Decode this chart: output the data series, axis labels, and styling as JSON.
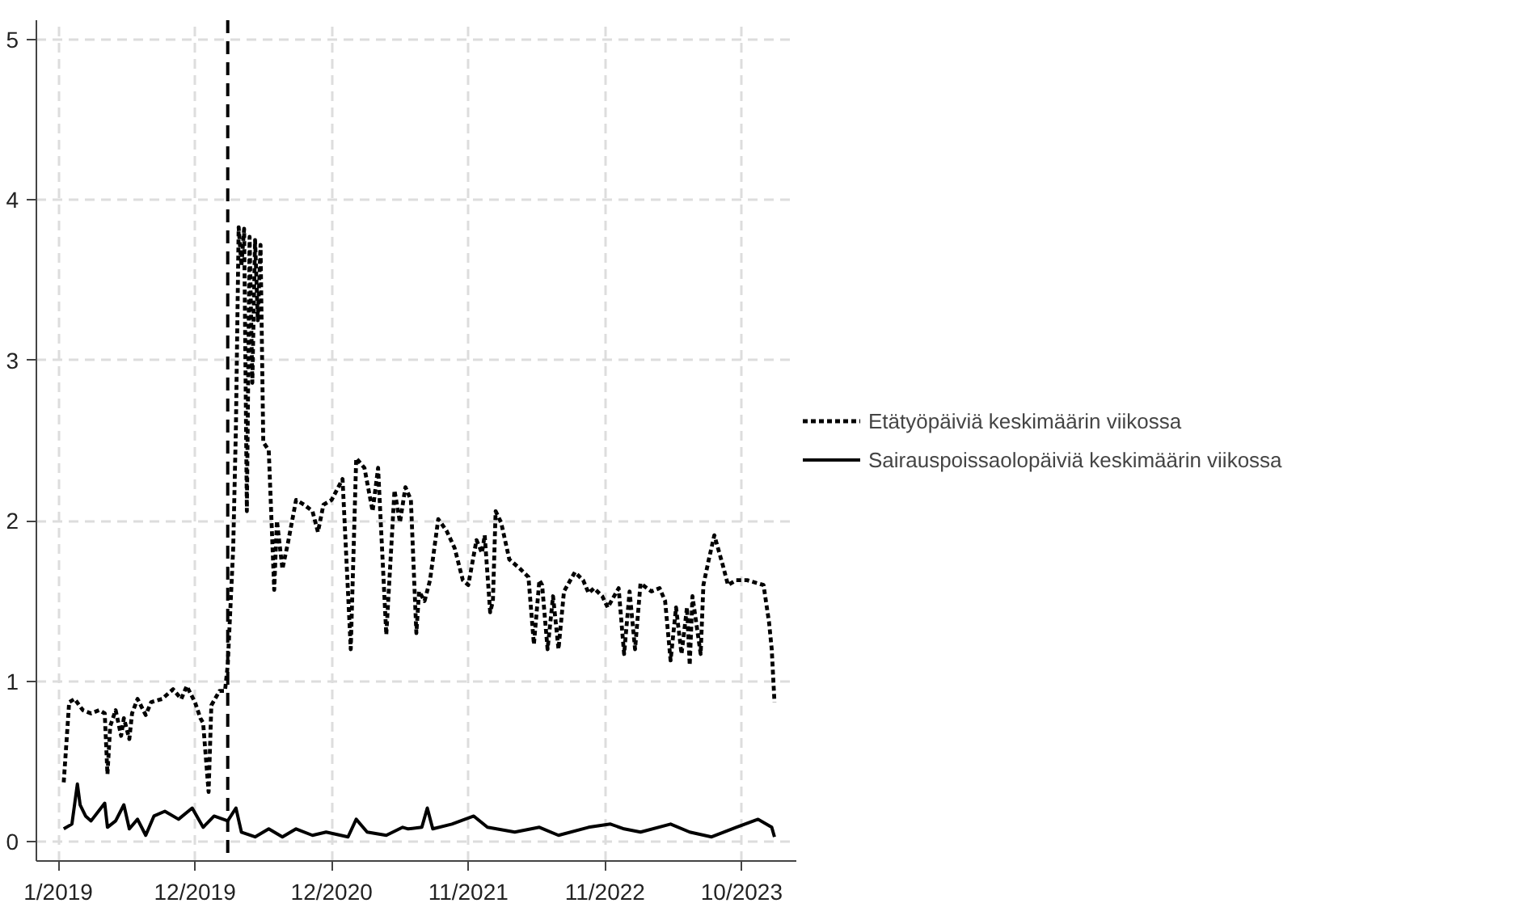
{
  "chart_data": {
    "type": "line",
    "xlim": [
      "2018-11-12",
      "2024-03-11"
    ],
    "ylim": [
      -0.12,
      5.12
    ],
    "xticks": [
      {
        "value": "2019-01-07",
        "label": "1/2019"
      },
      {
        "value": "2019-12-23",
        "label": "12/2019"
      },
      {
        "value": "2020-12-07",
        "label": "12/2020"
      },
      {
        "value": "2021-11-22",
        "label": "11/2021"
      },
      {
        "value": "2022-11-07",
        "label": "11/2022"
      },
      {
        "value": "2023-10-23",
        "label": "10/2023"
      }
    ],
    "yticks": [
      0,
      1,
      2,
      3,
      4,
      5
    ],
    "grid": true,
    "legend": "right",
    "marker": "none",
    "ref_lines": [
      {
        "axis": "x",
        "value": "2020-03-16",
        "color": "#000000",
        "line_style": "dashed"
      }
    ],
    "series": [
      {
        "name": "Etätyöpäiviä keskimäärin viikossa",
        "color": "#000000",
        "line_style": "dotted",
        "x": [
          "2019-01-21",
          "2019-02-04",
          "2019-02-18",
          "2019-03-11",
          "2019-04-01",
          "2019-04-22",
          "2019-05-06",
          "2019-05-13",
          "2019-05-20",
          "2019-06-03",
          "2019-06-17",
          "2019-06-24",
          "2019-07-08",
          "2019-07-15",
          "2019-07-29",
          "2019-08-19",
          "2019-09-02",
          "2019-09-30",
          "2019-10-28",
          "2019-11-18",
          "2019-12-02",
          "2019-12-23",
          "2020-01-06",
          "2020-01-13",
          "2020-01-27",
          "2020-02-03",
          "2020-02-24",
          "2020-03-09",
          "2020-03-16",
          "2020-03-30",
          "2020-04-06",
          "2020-04-13",
          "2020-04-20",
          "2020-04-27",
          "2020-05-04",
          "2020-05-11",
          "2020-05-18",
          "2020-05-25",
          "2020-06-01",
          "2020-06-08",
          "2020-06-15",
          "2020-06-29",
          "2020-07-13",
          "2020-07-20",
          "2020-08-03",
          "2020-08-17",
          "2020-09-07",
          "2020-09-28",
          "2020-10-19",
          "2020-11-02",
          "2020-11-16",
          "2020-12-07",
          "2021-01-04",
          "2021-01-25",
          "2021-02-08",
          "2021-03-01",
          "2021-03-22",
          "2021-04-05",
          "2021-04-26",
          "2021-05-17",
          "2021-05-31",
          "2021-06-14",
          "2021-06-28",
          "2021-07-12",
          "2021-07-19",
          "2021-08-02",
          "2021-08-16",
          "2021-09-06",
          "2021-09-27",
          "2021-10-18",
          "2021-11-08",
          "2021-11-22",
          "2021-12-13",
          "2021-12-27",
          "2022-01-03",
          "2022-01-17",
          "2022-01-24",
          "2022-01-31",
          "2022-02-14",
          "2022-03-07",
          "2022-04-04",
          "2022-04-25",
          "2022-05-09",
          "2022-05-23",
          "2022-05-30",
          "2022-06-13",
          "2022-06-27",
          "2022-07-11",
          "2022-07-25",
          "2022-08-22",
          "2022-09-12",
          "2022-09-26",
          "2022-10-10",
          "2022-10-31",
          "2022-11-14",
          "2022-12-12",
          "2022-12-26",
          "2023-01-09",
          "2023-01-23",
          "2023-02-06",
          "2023-03-06",
          "2023-03-27",
          "2023-04-10",
          "2023-04-24",
          "2023-05-08",
          "2023-05-22",
          "2023-06-05",
          "2023-06-12",
          "2023-06-19",
          "2023-07-10",
          "2023-07-17",
          "2023-07-31",
          "2023-08-14",
          "2023-09-04",
          "2023-09-18",
          "2023-10-09",
          "2023-11-06",
          "2023-12-04",
          "2023-12-18",
          "2024-01-01",
          "2024-01-08",
          "2024-01-15"
        ],
        "values": [
          0.37,
          0.87,
          0.89,
          0.82,
          0.8,
          0.82,
          0.8,
          0.42,
          0.72,
          0.82,
          0.66,
          0.77,
          0.64,
          0.8,
          0.89,
          0.79,
          0.87,
          0.89,
          0.95,
          0.89,
          0.97,
          0.87,
          0.77,
          0.74,
          0.31,
          0.85,
          0.94,
          0.94,
          1.1,
          1.83,
          2.59,
          3.83,
          3.59,
          3.82,
          2.06,
          3.77,
          2.86,
          3.75,
          3.25,
          3.72,
          2.49,
          2.44,
          1.57,
          2.0,
          1.7,
          1.86,
          2.13,
          2.1,
          2.06,
          1.93,
          2.1,
          2.13,
          2.26,
          1.2,
          2.39,
          2.33,
          2.06,
          2.33,
          1.29,
          2.19,
          1.99,
          2.21,
          2.13,
          1.3,
          1.56,
          1.5,
          1.63,
          2.01,
          1.94,
          1.83,
          1.63,
          1.6,
          1.88,
          1.8,
          1.91,
          1.43,
          1.5,
          2.06,
          1.99,
          1.76,
          1.7,
          1.65,
          1.23,
          1.63,
          1.6,
          1.2,
          1.53,
          1.2,
          1.56,
          1.68,
          1.63,
          1.55,
          1.58,
          1.53,
          1.46,
          1.58,
          1.17,
          1.56,
          1.2,
          1.61,
          1.56,
          1.58,
          1.5,
          1.13,
          1.46,
          1.17,
          1.46,
          1.1,
          1.53,
          1.17,
          1.6,
          1.76,
          1.91,
          1.73,
          1.6,
          1.63,
          1.63,
          1.61,
          1.6,
          1.37,
          1.2,
          0.87
        ]
      },
      {
        "name": "Sairauspoissaolopäiviä keskimäärin viikossa",
        "color": "#000000",
        "line_style": "solid",
        "x": [
          "2019-01-21",
          "2019-02-11",
          "2019-02-25",
          "2019-03-04",
          "2019-03-18",
          "2019-04-01",
          "2019-05-06",
          "2019-05-13",
          "2019-06-03",
          "2019-06-24",
          "2019-07-08",
          "2019-07-29",
          "2019-08-19",
          "2019-09-09",
          "2019-10-07",
          "2019-11-11",
          "2019-12-16",
          "2020-01-13",
          "2020-02-10",
          "2020-03-16",
          "2020-04-06",
          "2020-04-20",
          "2020-05-25",
          "2020-06-29",
          "2020-08-03",
          "2020-09-07",
          "2020-10-19",
          "2020-11-23",
          "2021-01-18",
          "2021-02-08",
          "2021-03-08",
          "2021-04-26",
          "2021-06-07",
          "2021-06-21",
          "2021-07-26",
          "2021-08-09",
          "2021-08-23",
          "2021-10-11",
          "2021-12-06",
          "2022-01-10",
          "2022-03-21",
          "2022-05-23",
          "2022-07-11",
          "2022-09-26",
          "2022-11-21",
          "2022-12-26",
          "2023-02-06",
          "2023-04-24",
          "2023-06-12",
          "2023-08-07",
          "2023-10-09",
          "2023-12-04",
          "2024-01-08",
          "2024-01-15"
        ],
        "values": [
          0.08,
          0.11,
          0.36,
          0.23,
          0.16,
          0.13,
          0.24,
          0.09,
          0.13,
          0.23,
          0.08,
          0.14,
          0.04,
          0.16,
          0.19,
          0.14,
          0.21,
          0.09,
          0.16,
          0.13,
          0.21,
          0.06,
          0.03,
          0.08,
          0.03,
          0.08,
          0.04,
          0.06,
          0.03,
          0.14,
          0.06,
          0.04,
          0.09,
          0.08,
          0.09,
          0.21,
          0.08,
          0.11,
          0.16,
          0.09,
          0.06,
          0.09,
          0.04,
          0.09,
          0.11,
          0.08,
          0.06,
          0.11,
          0.06,
          0.03,
          0.09,
          0.14,
          0.09,
          0.03
        ]
      }
    ]
  }
}
